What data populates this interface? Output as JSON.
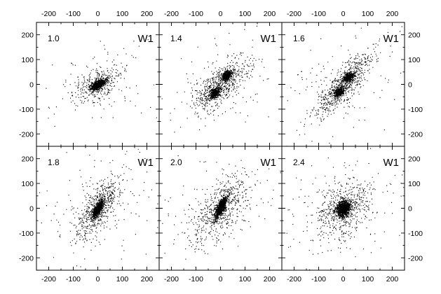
{
  "chart_data": {
    "type": "scatter",
    "title": "",
    "xlabel": "",
    "ylabel": "",
    "xlim": [
      -250,
      250
    ],
    "ylim": [
      -250,
      250
    ],
    "x_ticks": [
      -200,
      -100,
      0,
      100,
      200
    ],
    "y_ticks": [
      -200,
      -100,
      0,
      100,
      200
    ],
    "x_tick_labels": [
      "-200",
      "-100",
      "0",
      "100",
      "200"
    ],
    "y_tick_labels": [
      "-200",
      "-100",
      "0",
      "100",
      "200"
    ],
    "grid": false,
    "legend": "none",
    "point_color": "#000000",
    "layout": {
      "rows": 2,
      "cols": 3
    },
    "panels": [
      {
        "id": "p1",
        "time_label": "1.0",
        "tag": "W1",
        "clumps": [
          {
            "cx": 0,
            "cy": 0,
            "sx": 14,
            "sy": 10,
            "rho": 0.6,
            "n": 850
          },
          {
            "cx": 0,
            "cy": 0,
            "sx": 45,
            "sy": 35,
            "rho": 0.5,
            "n": 320
          },
          {
            "cx": 0,
            "cy": 0,
            "sx": 110,
            "sy": 90,
            "rho": 0.3,
            "n": 120
          }
        ]
      },
      {
        "id": "p2",
        "time_label": "1.4",
        "tag": "W1",
        "clumps": [
          {
            "cx": 25,
            "cy": 38,
            "sx": 10,
            "sy": 10,
            "rho": 0.4,
            "n": 420
          },
          {
            "cx": -25,
            "cy": -35,
            "sx": 10,
            "sy": 10,
            "rho": 0.4,
            "n": 420
          },
          {
            "cx": 0,
            "cy": 0,
            "sx": 55,
            "sy": 50,
            "rho": 0.7,
            "n": 650
          },
          {
            "cx": 0,
            "cy": 0,
            "sx": 120,
            "sy": 110,
            "rho": 0.3,
            "n": 130
          }
        ]
      },
      {
        "id": "p3",
        "time_label": "1.6",
        "tag": "W1",
        "clumps": [
          {
            "cx": 20,
            "cy": 30,
            "sx": 10,
            "sy": 10,
            "rho": 0.4,
            "n": 380
          },
          {
            "cx": -18,
            "cy": -30,
            "sx": 10,
            "sy": 10,
            "rho": 0.4,
            "n": 380
          },
          {
            "cx": 0,
            "cy": 0,
            "sx": 60,
            "sy": 65,
            "rho": 0.85,
            "n": 700
          },
          {
            "cx": 0,
            "cy": 0,
            "sx": 130,
            "sy": 110,
            "rho": 0.3,
            "n": 130
          }
        ]
      },
      {
        "id": "p4",
        "time_label": "1.8",
        "tag": "W1",
        "clumps": [
          {
            "cx": 0,
            "cy": 0,
            "sx": 10,
            "sy": 16,
            "rho": 0.7,
            "n": 750
          },
          {
            "cx": 0,
            "cy": 0,
            "sx": 45,
            "sy": 60,
            "rho": 0.7,
            "n": 600
          },
          {
            "cx": 0,
            "cy": 0,
            "sx": 120,
            "sy": 110,
            "rho": 0.3,
            "n": 160
          }
        ]
      },
      {
        "id": "p5",
        "time_label": "2.0",
        "tag": "W1",
        "clumps": [
          {
            "cx": 0,
            "cy": 5,
            "sx": 12,
            "sy": 22,
            "rho": 0.75,
            "n": 900
          },
          {
            "cx": 0,
            "cy": 0,
            "sx": 55,
            "sy": 70,
            "rho": 0.6,
            "n": 550
          },
          {
            "cx": 0,
            "cy": 0,
            "sx": 120,
            "sy": 110,
            "rho": 0.3,
            "n": 160
          }
        ]
      },
      {
        "id": "p6",
        "time_label": "2.4",
        "tag": "W1",
        "clumps": [
          {
            "cx": 0,
            "cy": 0,
            "sx": 14,
            "sy": 16,
            "rho": 0.2,
            "n": 1000
          },
          {
            "cx": 0,
            "cy": 0,
            "sx": 55,
            "sy": 60,
            "rho": 0.4,
            "n": 550
          },
          {
            "cx": 0,
            "cy": 0,
            "sx": 120,
            "sy": 110,
            "rho": 0.3,
            "n": 170
          }
        ]
      }
    ]
  }
}
